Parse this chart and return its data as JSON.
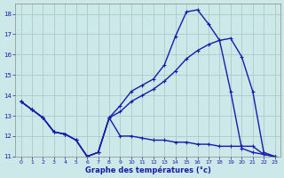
{
  "xlabel": "Graphe des températures (°c)",
  "xlim": [
    -0.5,
    23.5
  ],
  "ylim": [
    11,
    18.5
  ],
  "yticks": [
    11,
    12,
    13,
    14,
    15,
    16,
    17,
    18
  ],
  "xticks": [
    0,
    1,
    2,
    3,
    4,
    5,
    6,
    7,
    8,
    9,
    10,
    11,
    12,
    13,
    14,
    15,
    16,
    17,
    18,
    19,
    20,
    21,
    22,
    23
  ],
  "background_color": "#cce8e8",
  "grid_color": "#aacaca",
  "line_color": "#1a1aaa",
  "line1_x": [
    0,
    1,
    2,
    3,
    4,
    5,
    6,
    7,
    8,
    9,
    10,
    11,
    12,
    13,
    14,
    15,
    16,
    17,
    18,
    19,
    20,
    21,
    22,
    23
  ],
  "line1_y": [
    13.7,
    13.3,
    12.9,
    12.2,
    12.1,
    11.8,
    11.0,
    11.2,
    12.9,
    13.5,
    14.2,
    14.5,
    14.8,
    15.5,
    16.9,
    18.1,
    18.2,
    17.5,
    16.7,
    14.2,
    11.4,
    11.2,
    11.1,
    11.0
  ],
  "line2_x": [
    0,
    1,
    2,
    3,
    4,
    5,
    6,
    7,
    8,
    9,
    10,
    11,
    12,
    13,
    14,
    15,
    16,
    17,
    18,
    19,
    20,
    21,
    22,
    23
  ],
  "line2_y": [
    13.7,
    13.3,
    12.9,
    12.2,
    12.1,
    11.8,
    11.0,
    11.2,
    12.9,
    13.2,
    13.7,
    14.0,
    14.3,
    14.7,
    15.2,
    15.8,
    16.2,
    16.5,
    16.7,
    16.8,
    15.9,
    14.2,
    11.2,
    11.0
  ],
  "line3_x": [
    0,
    1,
    2,
    3,
    4,
    5,
    6,
    7,
    8,
    9,
    10,
    11,
    12,
    13,
    14,
    15,
    16,
    17,
    18,
    19,
    20,
    21,
    22,
    23
  ],
  "line3_y": [
    13.7,
    13.3,
    12.9,
    12.2,
    12.1,
    11.8,
    11.0,
    11.2,
    12.9,
    12.0,
    12.0,
    11.9,
    11.8,
    11.8,
    11.7,
    11.7,
    11.6,
    11.6,
    11.5,
    11.5,
    11.5,
    11.5,
    11.1,
    11.0
  ]
}
